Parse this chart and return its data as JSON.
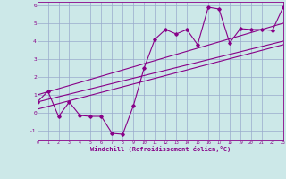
{
  "x_data": [
    0,
    1,
    2,
    3,
    4,
    5,
    6,
    7,
    8,
    9,
    10,
    11,
    12,
    13,
    14,
    15,
    16,
    17,
    18,
    19,
    20,
    21,
    22,
    23
  ],
  "y_main": [
    0.6,
    1.2,
    -0.2,
    0.6,
    -0.15,
    -0.2,
    -0.2,
    -1.15,
    -1.2,
    0.4,
    2.5,
    4.1,
    4.65,
    4.4,
    4.65,
    3.8,
    5.9,
    5.8,
    3.9,
    4.7,
    4.65,
    4.65,
    4.6,
    5.9
  ],
  "line1_x": [
    0,
    23
  ],
  "line1_y": [
    0.6,
    4.0
  ],
  "line2_x": [
    0,
    23
  ],
  "line2_y": [
    1.0,
    5.0
  ],
  "line3_x": [
    0,
    23
  ],
  "line3_y": [
    0.2,
    3.8
  ],
  "xlim": [
    0,
    23
  ],
  "ylim": [
    -1.5,
    6.2
  ],
  "yticks": [
    -1,
    0,
    1,
    2,
    3,
    4,
    5,
    6
  ],
  "xticks": [
    0,
    1,
    2,
    3,
    4,
    5,
    6,
    7,
    8,
    9,
    10,
    11,
    12,
    13,
    14,
    15,
    16,
    17,
    18,
    19,
    20,
    21,
    22,
    23
  ],
  "color": "#880088",
  "bg_color": "#cce8e8",
  "grid_color": "#99aacc",
  "xlabel": "Windchill (Refroidissement éolien,°C)"
}
